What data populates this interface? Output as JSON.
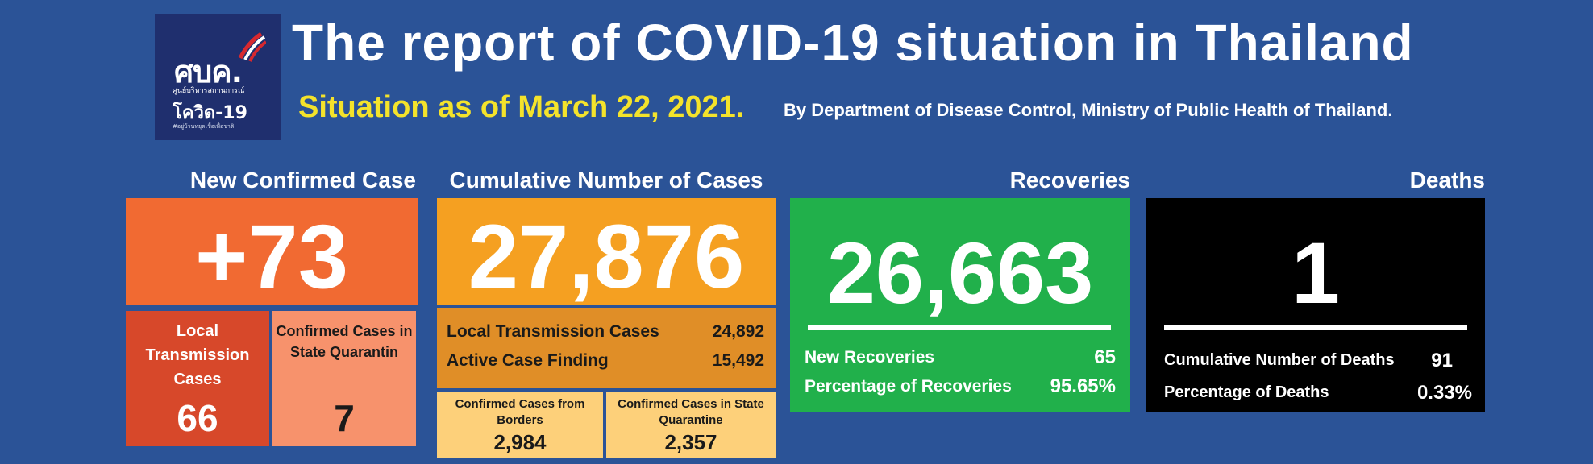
{
  "logo": {
    "mark": "ศบค.",
    "line1": "ศูนย์บริหารสถานการณ์",
    "line2": "โควิด-19",
    "tagline": "#อยู่บ้านหยุดเชื้อเพื่อชาติ",
    "colors": {
      "bg": "#1f2f6e",
      "flag_red": "#d7282f",
      "flag_white": "#ffffff",
      "flag_blue": "#2b3f8c"
    }
  },
  "header": {
    "title": "The report of COVID-19 situation in Thailand",
    "date_line": "Situation as of March 22, 2021.",
    "source_line": "By Department of Disease Control, Ministry of Public Health of Thailand."
  },
  "new_confirmed": {
    "heading": "New Confirmed Case",
    "total": "+73",
    "local_label": "Local Transmission Cases",
    "local_value": "66",
    "quarantine_label": "Confirmed Cases in State Quarantin",
    "quarantine_value": "7"
  },
  "cumulative": {
    "heading": "Cumulative Number of Cases",
    "total": "27,876",
    "local_label": "Local Transmission Cases",
    "local_value": "24,892",
    "active_label": "Active Case Finding",
    "active_value": "15,492",
    "borders_label": "Confirmed Cases from Borders",
    "borders_value": "2,984",
    "quarantine_label": "Confirmed Cases in State Quarantine",
    "quarantine_value": "2,357"
  },
  "recoveries": {
    "heading": "Recoveries",
    "total": "26,663",
    "new_label": "New Recoveries",
    "new_value": "65",
    "pct_label": "Percentage of Recoveries",
    "pct_value": "95.65%"
  },
  "deaths": {
    "heading": "Deaths",
    "total": "1",
    "cum_label": "Cumulative Number of Deaths",
    "cum_value": "91",
    "pct_label": "Percentage of Deaths",
    "pct_value": "0.33%"
  },
  "colors": {
    "background": "#2b5397",
    "date_yellow": "#f4e32b",
    "new_main": "#f16a32",
    "new_local": "#d7482a",
    "new_quarantine": "#f7926c",
    "cum_main": "#f5a021",
    "cum_mid": "#e08e27",
    "cum_small": "#fdd07a",
    "recoveries": "#21b04b",
    "deaths": "#000000"
  }
}
